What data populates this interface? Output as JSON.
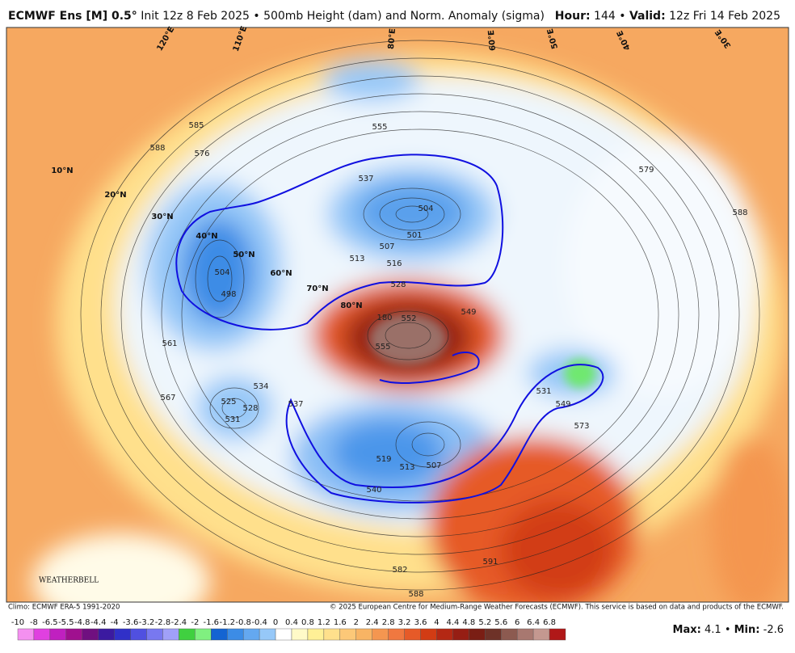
{
  "header": {
    "model": "ECMWF Ens [M] 0.5°",
    "description": "Init 12z 8 Feb 2025 • 500mb Height (dam) and Norm. Anomaly (sigma)",
    "hour_label": "Hour:",
    "hour": "144",
    "separator": "•",
    "valid_label": "Valid:",
    "valid": "12z Fri 14 Feb 2025"
  },
  "latitude_labels": [
    "10°N",
    "20°N",
    "30°N",
    "40°N",
    "50°N",
    "60°N",
    "70°N",
    "80°N"
  ],
  "longitude_labels": [
    "120°E",
    "110°E",
    "80°E",
    "60°E",
    "50°E",
    "40°E",
    "30°E"
  ],
  "contour_labels": [
    "585",
    "588",
    "576",
    "555",
    "537",
    "504",
    "501",
    "507",
    "513",
    "516",
    "528",
    "549",
    "552",
    "180",
    "555",
    "504",
    "498",
    "561",
    "567",
    "534",
    "525",
    "531",
    "528",
    "537",
    "531",
    "549",
    "573",
    "579",
    "588",
    "540",
    "519",
    "513",
    "507",
    "582",
    "591",
    "588"
  ],
  "logo": "WEATHERBELL",
  "footer": {
    "climo": "Climo: ECMWF ERA-5 1991-2020",
    "copyright": "© 2025 European Centre for Medium-Range Weather Forecasts (ECMWF). This service is based on data and products of the ECMWF.",
    "max_label": "Max:",
    "max": "4.1",
    "min_label": "Min:",
    "min": "-2.6"
  },
  "colorbar": {
    "ticks": [
      -10,
      -8,
      -6.5,
      -5.5,
      -4.8,
      -4.4,
      -4,
      -3.6,
      -3.2,
      -2.8,
      -2.4,
      -2,
      -1.6,
      -1.2,
      -0.8,
      -0.4,
      0,
      0.4,
      0.8,
      1.2,
      1.6,
      2,
      2.4,
      2.8,
      3.2,
      3.6,
      4,
      4.4,
      4.8,
      5.2,
      5.6,
      6,
      6.4,
      6.8
    ],
    "colors": [
      "#f490f0",
      "#e040e0",
      "#c020c0",
      "#a0108f",
      "#701080",
      "#3b1aa0",
      "#3030c8",
      "#5050e0",
      "#7878f0",
      "#a0a0f8",
      "#40d040",
      "#80f080",
      "#1464d2",
      "#3c8ce6",
      "#64a8f0",
      "#96c8f8",
      "#ffffff",
      "#fffac8",
      "#fff096",
      "#ffe08c",
      "#fcc878",
      "#f8b464",
      "#f49650",
      "#f07840",
      "#e65a28",
      "#d23c14",
      "#b42814",
      "#961e14",
      "#7a1e14",
      "#6e3228",
      "#8c5a50",
      "#a87870",
      "#c49890",
      "#b01818"
    ]
  }
}
